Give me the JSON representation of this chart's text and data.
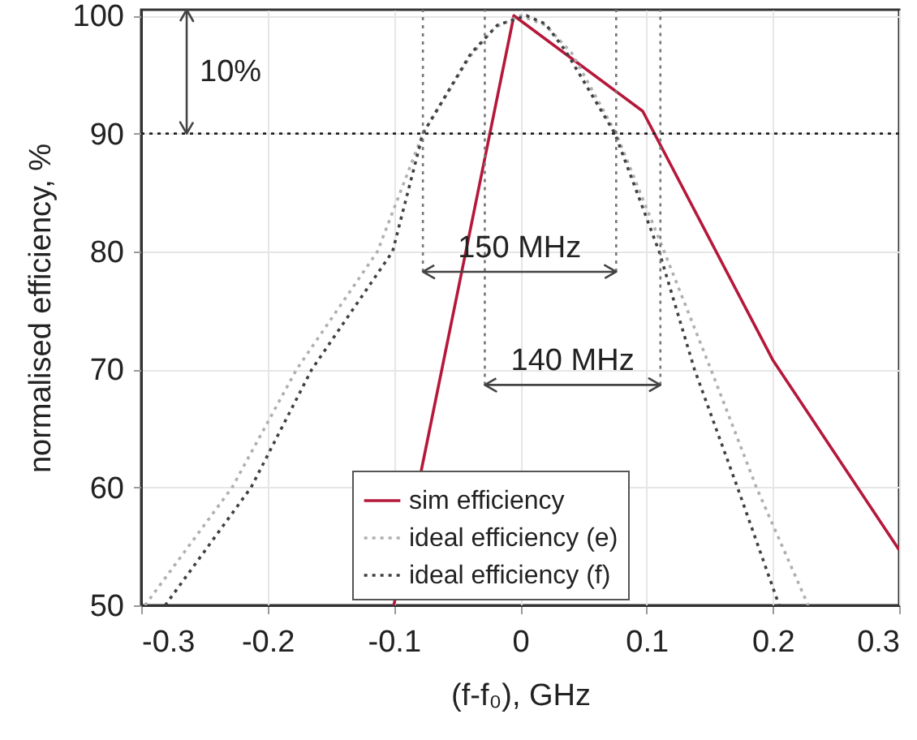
{
  "chart_data": {
    "type": "line",
    "xlabel": "(f-f₀), GHz",
    "ylabel": "normalised efficiency, %",
    "xlim": [
      -0.3,
      0.3
    ],
    "ylim": [
      50,
      100.5
    ],
    "xticks": [
      -0.3,
      -0.2,
      -0.1,
      0,
      0.1,
      0.2,
      0.3
    ],
    "yticks": [
      50,
      60,
      70,
      80,
      90,
      100
    ],
    "grid": true,
    "legend": "bottom right",
    "series": [
      {
        "name": "sim efficiency",
        "color": "#b5183a",
        "line_style": "solid",
        "x": [
          -0.1,
          -0.005,
          0.097,
          0.2,
          0.3
        ],
        "values": [
          50,
          100,
          91.9,
          70.8,
          54.7
        ]
      },
      {
        "name": "ideal efficiency (e)",
        "color": "#b0b0b0",
        "line_style": "dotted",
        "x": [
          -0.297,
          -0.228,
          -0.177,
          -0.113,
          -0.077,
          -0.04,
          -0.02,
          0,
          0.02,
          0.041,
          0.076,
          0.114,
          0.151,
          0.187,
          0.228
        ],
        "values": [
          50,
          60,
          70,
          80,
          90,
          96.5,
          99,
          100,
          99.2,
          96.8,
          90,
          80,
          70,
          60,
          50
        ]
      },
      {
        "name": "ideal efficiency (f)",
        "color": "#404040",
        "line_style": "dotted",
        "x": [
          -0.281,
          -0.213,
          -0.165,
          -0.101,
          -0.077,
          -0.039,
          -0.018,
          0.005,
          0.02,
          0.036,
          0.075,
          0.11,
          0.138,
          0.172,
          0.205
        ],
        "values": [
          50,
          60,
          70,
          80,
          90,
          96.8,
          99.2,
          100,
          99.3,
          97,
          90,
          80,
          70,
          60,
          50
        ]
      }
    ],
    "ref_lines": [
      {
        "axis": "y",
        "value": 90,
        "color": "#202020",
        "line_style": "dotted"
      },
      {
        "axis": "x",
        "value": -0.077,
        "color": "#777777",
        "line_style": "dotted"
      },
      {
        "axis": "x",
        "value": 0.076,
        "color": "#777777",
        "line_style": "dotted"
      },
      {
        "axis": "x",
        "value": -0.028,
        "color": "#777777",
        "line_style": "dotted"
      },
      {
        "axis": "x",
        "value": 0.111,
        "color": "#777777",
        "line_style": "dotted"
      }
    ],
    "annotations": [
      "10%",
      "150 MHz",
      "140 MHz"
    ]
  }
}
